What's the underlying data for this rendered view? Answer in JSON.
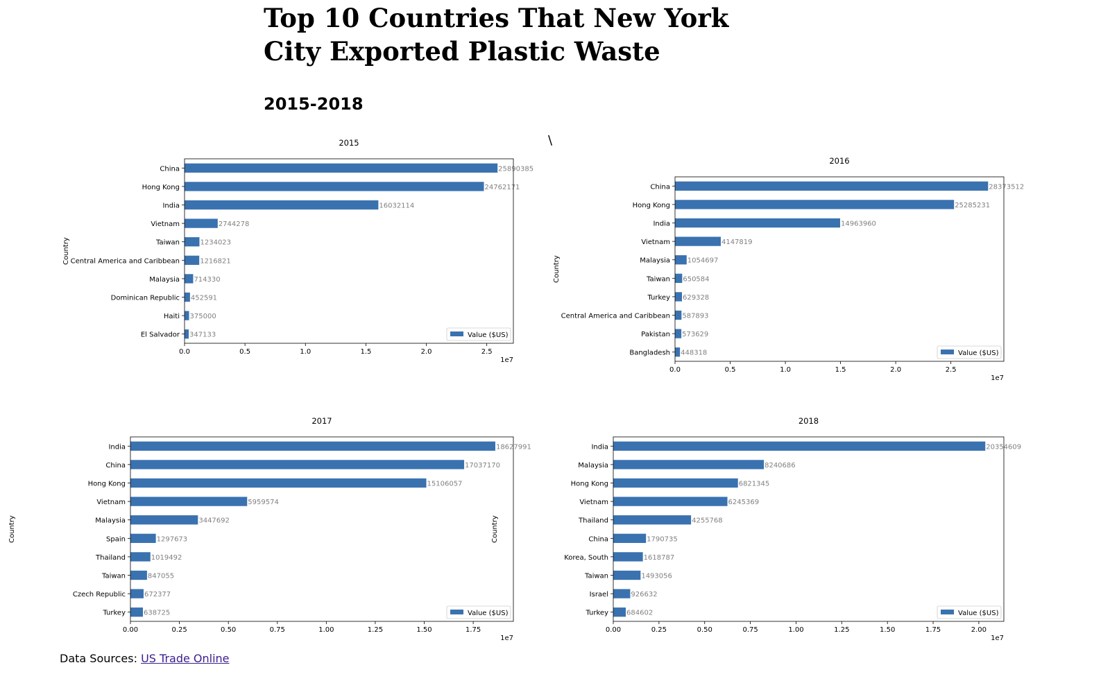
{
  "header": {
    "title": "Top 10 Countries That New York City Exported Plastic Waste",
    "subtitle": "2015-2018",
    "stray_mark": "\\"
  },
  "footer": {
    "source_prefix": "Data Sources: ",
    "source_link": "US Trade Online"
  },
  "colors": {
    "bar": "#3a72b0",
    "value_label": "#808080",
    "axis": "#000000"
  },
  "chart_data": [
    {
      "type": "bar",
      "orientation": "horizontal",
      "title": "2015",
      "ylabel": "Country",
      "xlabel": "",
      "offset_label": "1e7",
      "legend": {
        "label": "Value ($US)",
        "position": "lower-right"
      },
      "xlim": [
        0,
        27200000
      ],
      "xticks": [
        0,
        5000000,
        10000000,
        15000000,
        20000000,
        25000000
      ],
      "xtick_labels": [
        "0.0",
        "0.5",
        "1.0",
        "1.5",
        "2.0",
        "2.5"
      ],
      "series": [
        {
          "name": "Value ($US)"
        }
      ],
      "categories": [
        "China",
        "Hong Kong",
        "India",
        "Vietnam",
        "Taiwan",
        "Central America and Caribbean",
        "Malaysia",
        "Dominican Republic",
        "Haiti",
        "El Salvador"
      ],
      "values": [
        25890385,
        24762171,
        16032114,
        2744278,
        1234023,
        1216821,
        714330,
        452591,
        375000,
        347133
      ]
    },
    {
      "type": "bar",
      "orientation": "horizontal",
      "title": "2016",
      "ylabel": "Country",
      "xlabel": "",
      "offset_label": "1e7",
      "legend": {
        "label": "Value ($US)",
        "position": "lower-right"
      },
      "xlim": [
        0,
        29800000
      ],
      "xticks": [
        0,
        5000000,
        10000000,
        15000000,
        20000000,
        25000000
      ],
      "xtick_labels": [
        "0.0",
        "0.5",
        "1.0",
        "1.5",
        "2.0",
        "2.5"
      ],
      "series": [
        {
          "name": "Value ($US)"
        }
      ],
      "categories": [
        "China",
        "Hong Kong",
        "India",
        "Vietnam",
        "Malaysia",
        "Taiwan",
        "Turkey",
        "Central America and Caribbean",
        "Pakistan",
        "Bangladesh"
      ],
      "values": [
        28373512,
        25285231,
        14963960,
        4147819,
        1054697,
        650584,
        629328,
        587893,
        573629,
        448318
      ]
    },
    {
      "type": "bar",
      "orientation": "horizontal",
      "title": "2017",
      "ylabel": "Country",
      "xlabel": "",
      "offset_label": "1e7",
      "legend": {
        "label": "Value ($US)",
        "position": "lower-right"
      },
      "xlim": [
        0,
        19550000
      ],
      "xticks": [
        0,
        2500000,
        5000000,
        7500000,
        10000000,
        12500000,
        15000000,
        17500000
      ],
      "xtick_labels": [
        "0.00",
        "0.25",
        "0.50",
        "0.75",
        "1.00",
        "1.25",
        "1.50",
        "1.75"
      ],
      "series": [
        {
          "name": "Value ($US)"
        }
      ],
      "categories": [
        "India",
        "China",
        "Hong Kong",
        "Vietnam",
        "Malaysia",
        "Spain",
        "Thailand",
        "Taiwan",
        "Czech Republic",
        "Turkey"
      ],
      "values": [
        18627991,
        17037170,
        15106057,
        5959574,
        3447692,
        1297673,
        1019492,
        847055,
        672377,
        638725
      ]
    },
    {
      "type": "bar",
      "orientation": "horizontal",
      "title": "2018",
      "ylabel": "Country",
      "xlabel": "",
      "offset_label": "1e7",
      "legend": {
        "label": "Value ($US)",
        "position": "lower-right"
      },
      "xlim": [
        0,
        21370000
      ],
      "xticks": [
        0,
        2500000,
        5000000,
        7500000,
        10000000,
        12500000,
        15000000,
        17500000,
        20000000
      ],
      "xtick_labels": [
        "0.00",
        "0.25",
        "0.50",
        "0.75",
        "1.00",
        "1.25",
        "1.50",
        "1.75",
        "2.00"
      ],
      "series": [
        {
          "name": "Value ($US)"
        }
      ],
      "categories": [
        "India",
        "Malaysia",
        "Hong Kong",
        "Vietnam",
        "Thailand",
        "China",
        "Korea, South",
        "Taiwan",
        "Israel",
        "Turkey"
      ],
      "values": [
        20354609,
        8240686,
        6821345,
        6245369,
        4255768,
        1790735,
        1618787,
        1493056,
        926632,
        684602
      ]
    }
  ]
}
